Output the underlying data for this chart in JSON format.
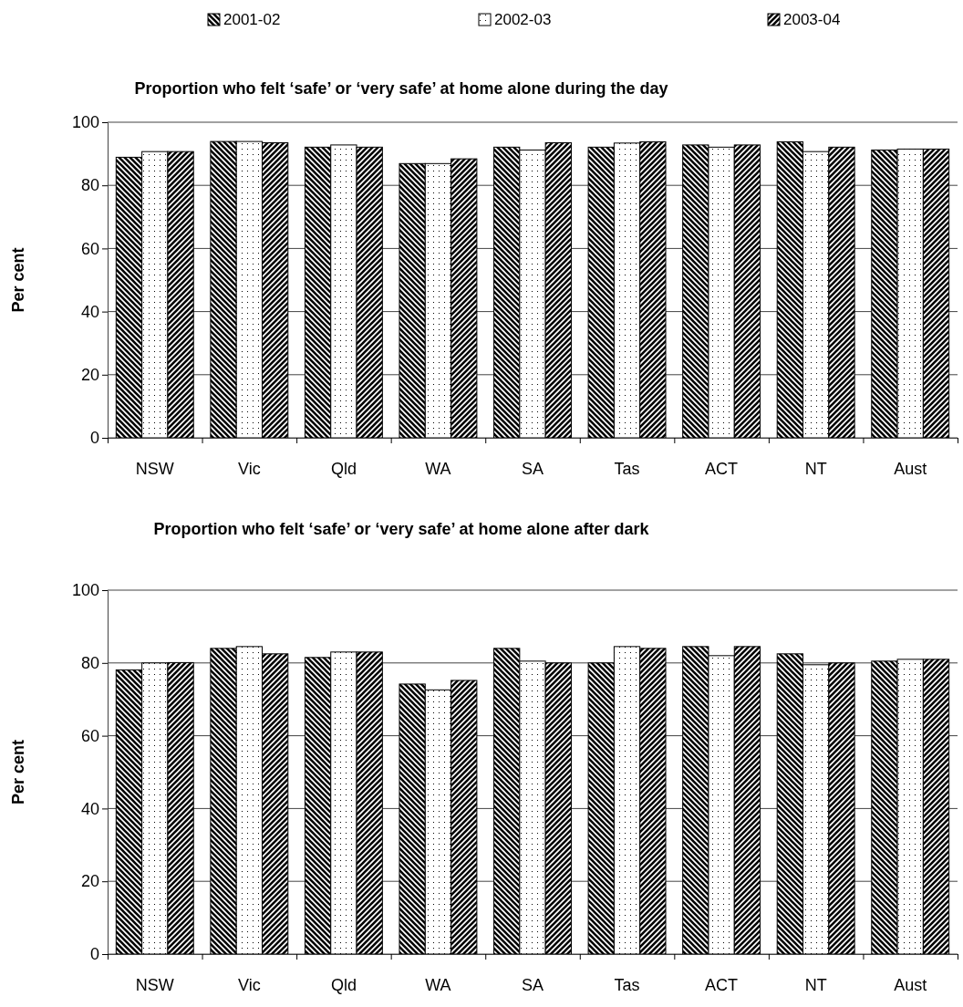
{
  "chart_data": [
    {
      "type": "bar",
      "title": "Proportion who felt ‘safe’ or ‘very safe’ at home alone during the day",
      "ylabel": "Per cent",
      "categories": [
        "NSW",
        "Vic",
        "Qld",
        "WA",
        "SA",
        "Tas",
        "ACT",
        "NT",
        "Aust"
      ],
      "series": [
        {
          "name": "2001-02",
          "color": "#000000",
          "values": [
            88.9,
            93.9,
            92.1,
            86.9,
            92.1,
            92.1,
            92.8,
            93.8,
            91.2
          ]
        },
        {
          "name": "2002-03",
          "color": "#000000",
          "values": [
            90.7,
            93.9,
            92.8,
            86.9,
            91.2,
            93.4,
            92.1,
            90.7,
            91.5
          ]
        },
        {
          "name": "2003-04",
          "color": "#000000",
          "values": [
            90.7,
            93.5,
            92.1,
            88.4,
            93.5,
            93.8,
            92.8,
            92.1,
            91.5
          ]
        }
      ],
      "ylim": [
        0,
        100
      ],
      "yticks": [
        0,
        20,
        40,
        60,
        80,
        100
      ],
      "grid": "y",
      "legend": "top"
    },
    {
      "type": "bar",
      "title": "Proportion who felt ‘safe’ or ‘very safe’ at home alone after dark",
      "ylabel": "Per cent",
      "categories": [
        "NSW",
        "Vic",
        "Qld",
        "WA",
        "SA",
        "Tas",
        "ACT",
        "NT",
        "Aust"
      ],
      "series": [
        {
          "color": "#000000",
          "values": [
            78.1,
            84,
            81.5,
            74.2,
            84,
            80,
            84.5,
            82.5,
            80.5
          ]
        },
        {
          "color": "#000000",
          "values": [
            80,
            84.5,
            83,
            72.6,
            80.5,
            84.5,
            82,
            79.5,
            81
          ]
        },
        {
          "color": "#000000",
          "values": [
            80.1,
            82.5,
            83,
            75.2,
            80,
            84,
            84.5,
            80,
            81
          ]
        }
      ],
      "ylim": [
        0,
        100
      ],
      "yticks": [
        0,
        20,
        40,
        60,
        80,
        100
      ],
      "grid": "y"
    }
  ]
}
